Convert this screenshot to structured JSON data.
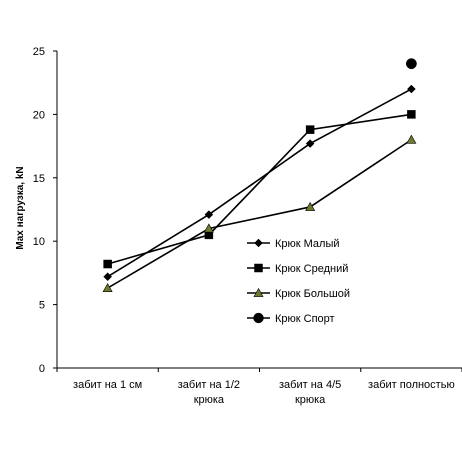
{
  "chart_data": {
    "type": "line",
    "title": "",
    "xlabel": "",
    "ylabel": "Max нагрузка,  kN",
    "ylim": [
      0,
      25
    ],
    "yticks": [
      0,
      5,
      10,
      15,
      20,
      25
    ],
    "categories": [
      [
        "забит на 1 см"
      ],
      [
        "забит на 1/2",
        "крюка"
      ],
      [
        "забит на 4/5",
        "крюка"
      ],
      [
        "забит полностью"
      ]
    ],
    "grid": false,
    "legend_position": "right-middle",
    "series": [
      {
        "name": "Крюк Малый",
        "marker": "diamond",
        "color": "#000000",
        "marker_fill": "#000000",
        "line": true,
        "values": [
          7.2,
          12.1,
          17.7,
          22.0
        ]
      },
      {
        "name": "Крюк Средний",
        "marker": "square",
        "color": "#000000",
        "marker_fill": "#000000",
        "line": true,
        "values": [
          8.2,
          10.5,
          18.8,
          20.0
        ]
      },
      {
        "name": "Крюк Большой",
        "marker": "triangle",
        "color": "#000000",
        "marker_fill": "#6b7a2e",
        "line": true,
        "values": [
          6.3,
          11.0,
          12.7,
          18.0
        ]
      },
      {
        "name": "Крюк Спорт",
        "marker": "circle",
        "color": "#000000",
        "marker_fill": "#000000",
        "line": false,
        "values": [
          null,
          null,
          null,
          24.0
        ]
      }
    ]
  }
}
